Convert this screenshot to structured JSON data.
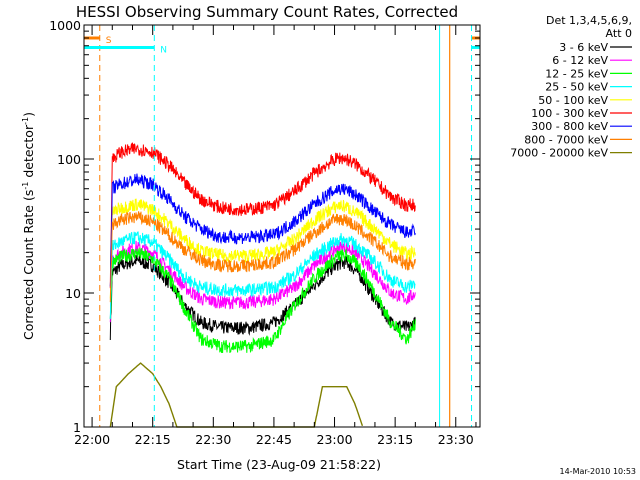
{
  "chart_data": {
    "type": "line",
    "title": "HESSI Observing Summary Count Rates, Corrected",
    "xlabel": "Start Time (23-Aug-09 21:58:22)",
    "ylabel": "Corrected Count Rate (s",
    "ylabel_sup1": "-1",
    "ylabel_mid": " detector",
    "ylabel_sup2": "-1",
    "ylabel_end": ")",
    "y_scale": "log",
    "ylim": [
      1,
      1000
    ],
    "xlim_minutes": [
      -2,
      96
    ],
    "x_ticks": [
      {
        "label": "22:00",
        "minutes": 0
      },
      {
        "label": "22:15",
        "minutes": 15
      },
      {
        "label": "22:30",
        "minutes": 30
      },
      {
        "label": "22:45",
        "minutes": 45
      },
      {
        "label": "23:00",
        "minutes": 60
      },
      {
        "label": "23:15",
        "minutes": 75
      },
      {
        "label": "23:30",
        "minutes": 90
      }
    ],
    "y_ticks": [
      {
        "label": "1",
        "value": 1
      },
      {
        "label": "10",
        "value": 10
      },
      {
        "label": "100",
        "value": 100
      },
      {
        "label": "1000",
        "value": 1000
      }
    ],
    "grid": false,
    "legend_placement": "right",
    "legend_header": [
      "Det 1,3,4,5,6,9,",
      "Att 0"
    ],
    "footer_date": "14-Mar-2010 10:53",
    "markers": [
      {
        "label": "S",
        "color": "#ff7f00",
        "style": "dashed",
        "start_minutes": 1.9,
        "end_minutes": 93.9,
        "level": 800
      },
      {
        "label": "N",
        "color": "#00ffff",
        "style": "dashed",
        "start_minutes": 15.4,
        "end_minutes": 93.9,
        "level": 680
      }
    ],
    "series": [
      {
        "name": "3 - 6 keV",
        "color": "#000000",
        "points": [
          [
            4.5,
            5
          ],
          [
            5,
            14
          ],
          [
            7,
            16
          ],
          [
            11,
            17.5
          ],
          [
            15,
            16
          ],
          [
            19,
            12
          ],
          [
            23,
            8
          ],
          [
            27,
            6
          ],
          [
            32,
            5.5
          ],
          [
            39,
            5.5
          ],
          [
            45,
            6
          ],
          [
            50,
            8
          ],
          [
            55,
            11.5
          ],
          [
            59,
            15
          ],
          [
            61,
            16.5
          ],
          [
            63,
            17
          ],
          [
            66,
            14
          ],
          [
            70,
            9
          ],
          [
            74,
            6
          ],
          [
            78,
            5.5
          ],
          [
            80,
            6
          ]
        ]
      },
      {
        "name": "6 - 12 keV",
        "color": "#ff00ff",
        "points": [
          [
            4.5,
            6
          ],
          [
            5,
            18
          ],
          [
            7,
            20
          ],
          [
            11,
            22
          ],
          [
            15,
            20
          ],
          [
            19,
            15
          ],
          [
            23,
            11
          ],
          [
            27,
            9
          ],
          [
            32,
            8.5
          ],
          [
            39,
            8.5
          ],
          [
            45,
            9
          ],
          [
            50,
            11
          ],
          [
            55,
            16
          ],
          [
            59,
            20
          ],
          [
            61,
            22
          ],
          [
            63,
            22
          ],
          [
            66,
            19
          ],
          [
            70,
            14
          ],
          [
            74,
            10
          ],
          [
            78,
            9
          ],
          [
            80,
            10
          ]
        ]
      },
      {
        "name": "12 - 25 keV",
        "color": "#00ff00",
        "points": [
          [
            4.5,
            6
          ],
          [
            5,
            17
          ],
          [
            7,
            18.5
          ],
          [
            11,
            20
          ],
          [
            15,
            18
          ],
          [
            19,
            13
          ],
          [
            23,
            7.5
          ],
          [
            27,
            4.5
          ],
          [
            32,
            4
          ],
          [
            39,
            4
          ],
          [
            45,
            4.5
          ],
          [
            50,
            8
          ],
          [
            55,
            13
          ],
          [
            59,
            17
          ],
          [
            61,
            19
          ],
          [
            63,
            19
          ],
          [
            66,
            16
          ],
          [
            70,
            10
          ],
          [
            74,
            6
          ],
          [
            78,
            4.5
          ],
          [
            80,
            6
          ]
        ]
      },
      {
        "name": "25 - 50 keV",
        "color": "#00ffff",
        "points": [
          [
            4.5,
            7
          ],
          [
            5,
            22
          ],
          [
            7,
            24
          ],
          [
            11,
            26
          ],
          [
            15,
            24
          ],
          [
            19,
            18
          ],
          [
            23,
            13
          ],
          [
            27,
            11
          ],
          [
            32,
            10.5
          ],
          [
            39,
            10.5
          ],
          [
            45,
            11
          ],
          [
            50,
            13.5
          ],
          [
            55,
            19
          ],
          [
            59,
            23
          ],
          [
            61,
            25
          ],
          [
            63,
            25
          ],
          [
            66,
            22
          ],
          [
            70,
            17
          ],
          [
            74,
            12.5
          ],
          [
            78,
            11
          ],
          [
            80,
            12
          ]
        ]
      },
      {
        "name": "50 - 100 keV",
        "color": "#ffff00",
        "points": [
          [
            4.5,
            9
          ],
          [
            5,
            40
          ],
          [
            7,
            43
          ],
          [
            11,
            46
          ],
          [
            15,
            42
          ],
          [
            19,
            33
          ],
          [
            23,
            25
          ],
          [
            27,
            20.5
          ],
          [
            32,
            19
          ],
          [
            39,
            19
          ],
          [
            45,
            20
          ],
          [
            50,
            25
          ],
          [
            55,
            35
          ],
          [
            59,
            42
          ],
          [
            61,
            45
          ],
          [
            63,
            44
          ],
          [
            66,
            38
          ],
          [
            70,
            30
          ],
          [
            74,
            23
          ],
          [
            78,
            19.5
          ],
          [
            80,
            20
          ]
        ]
      },
      {
        "name": "100 - 300 keV",
        "color": "#ff0000",
        "points": [
          [
            4.5,
            12
          ],
          [
            5,
            100
          ],
          [
            7,
            112
          ],
          [
            11,
            120
          ],
          [
            15,
            113
          ],
          [
            19,
            90
          ],
          [
            23,
            65
          ],
          [
            27,
            50
          ],
          [
            32,
            43
          ],
          [
            39,
            42
          ],
          [
            45,
            45
          ],
          [
            50,
            57
          ],
          [
            55,
            78
          ],
          [
            59,
            95
          ],
          [
            61,
            102
          ],
          [
            63,
            100
          ],
          [
            66,
            88
          ],
          [
            70,
            68
          ],
          [
            74,
            52
          ],
          [
            78,
            45
          ],
          [
            80,
            46
          ]
        ]
      },
      {
        "name": "300 - 800 keV",
        "color": "#0000ff",
        "points": [
          [
            4.5,
            10
          ],
          [
            5,
            60
          ],
          [
            7,
            65
          ],
          [
            11,
            70
          ],
          [
            15,
            65
          ],
          [
            19,
            50
          ],
          [
            23,
            37
          ],
          [
            27,
            30
          ],
          [
            32,
            26
          ],
          [
            39,
            26
          ],
          [
            45,
            27
          ],
          [
            50,
            34
          ],
          [
            55,
            46
          ],
          [
            59,
            56
          ],
          [
            61,
            60
          ],
          [
            63,
            59
          ],
          [
            66,
            52
          ],
          [
            70,
            40
          ],
          [
            74,
            32
          ],
          [
            78,
            28
          ],
          [
            80,
            29
          ]
        ]
      },
      {
        "name": "800 - 7000 keV",
        "color": "#ff7f00",
        "points": [
          [
            4.5,
            8
          ],
          [
            5,
            32
          ],
          [
            7,
            35
          ],
          [
            11,
            37
          ],
          [
            15,
            34
          ],
          [
            19,
            27
          ],
          [
            23,
            21
          ],
          [
            27,
            17.5
          ],
          [
            32,
            16
          ],
          [
            39,
            16
          ],
          [
            45,
            17
          ],
          [
            50,
            21
          ],
          [
            55,
            28
          ],
          [
            59,
            34
          ],
          [
            61,
            36
          ],
          [
            63,
            35
          ],
          [
            66,
            30
          ],
          [
            70,
            24
          ],
          [
            74,
            18.5
          ],
          [
            78,
            16.5
          ],
          [
            80,
            17
          ]
        ]
      },
      {
        "name": "7000 - 20000 keV",
        "color": "#7f7f00",
        "points": [
          [
            4.5,
            1
          ],
          [
            6,
            2
          ],
          [
            9,
            2.5
          ],
          [
            12,
            3
          ],
          [
            15,
            2.5
          ],
          [
            17,
            2
          ],
          [
            19,
            1.5
          ],
          [
            21,
            1
          ],
          [
            55,
            1
          ],
          [
            57,
            2
          ],
          [
            60,
            2
          ],
          [
            63,
            2
          ],
          [
            65,
            1.5
          ],
          [
            67,
            1
          ]
        ]
      }
    ]
  }
}
